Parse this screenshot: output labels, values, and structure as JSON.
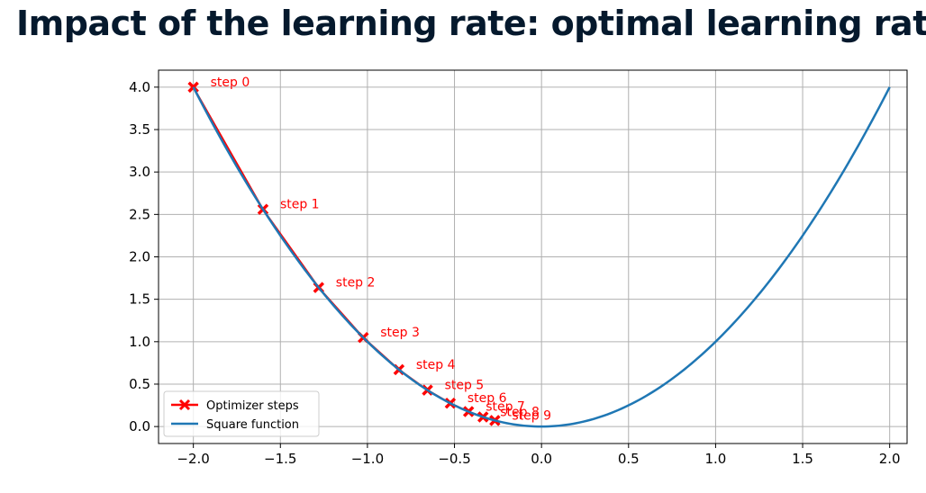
{
  "slide": {
    "title": "Impact of the learning rate: optimal learning rate"
  },
  "chart_data": {
    "type": "line",
    "xlim": [
      -2.2,
      2.1
    ],
    "ylim": [
      -0.2,
      4.2
    ],
    "x_ticks": [
      -2.0,
      -1.5,
      -1.0,
      -0.5,
      0.0,
      0.5,
      1.0,
      1.5,
      2.0
    ],
    "x_tick_labels": [
      "−2.0",
      "−1.5",
      "−1.0",
      "−0.5",
      "0.0",
      "0.5",
      "1.0",
      "1.5",
      "2.0"
    ],
    "y_ticks": [
      0.0,
      0.5,
      1.0,
      1.5,
      2.0,
      2.5,
      3.0,
      3.5,
      4.0
    ],
    "y_tick_labels": [
      "0.0",
      "0.5",
      "1.0",
      "1.5",
      "2.0",
      "2.5",
      "3.0",
      "3.5",
      "4.0"
    ],
    "grid": true,
    "legend_placement": "lower-left",
    "series": [
      {
        "name": "Optimizer steps",
        "color": "#ff0000",
        "marker": "x",
        "x": [
          -2.0,
          -1.6,
          -1.28,
          -1.024,
          -0.819,
          -0.655,
          -0.524,
          -0.419,
          -0.336,
          -0.268
        ],
        "y": [
          4.0,
          2.56,
          1.638,
          1.049,
          0.671,
          0.429,
          0.275,
          0.176,
          0.113,
          0.072
        ],
        "labels": [
          "step 0",
          "step 1",
          "step 2",
          "step 3",
          "step 4",
          "step 5",
          "step 6",
          "step 7",
          "step 8",
          "step 9"
        ]
      },
      {
        "name": "Square function",
        "color": "#1f77b4",
        "function": "x^2",
        "x_range": [
          -2.0,
          2.0
        ]
      }
    ]
  }
}
